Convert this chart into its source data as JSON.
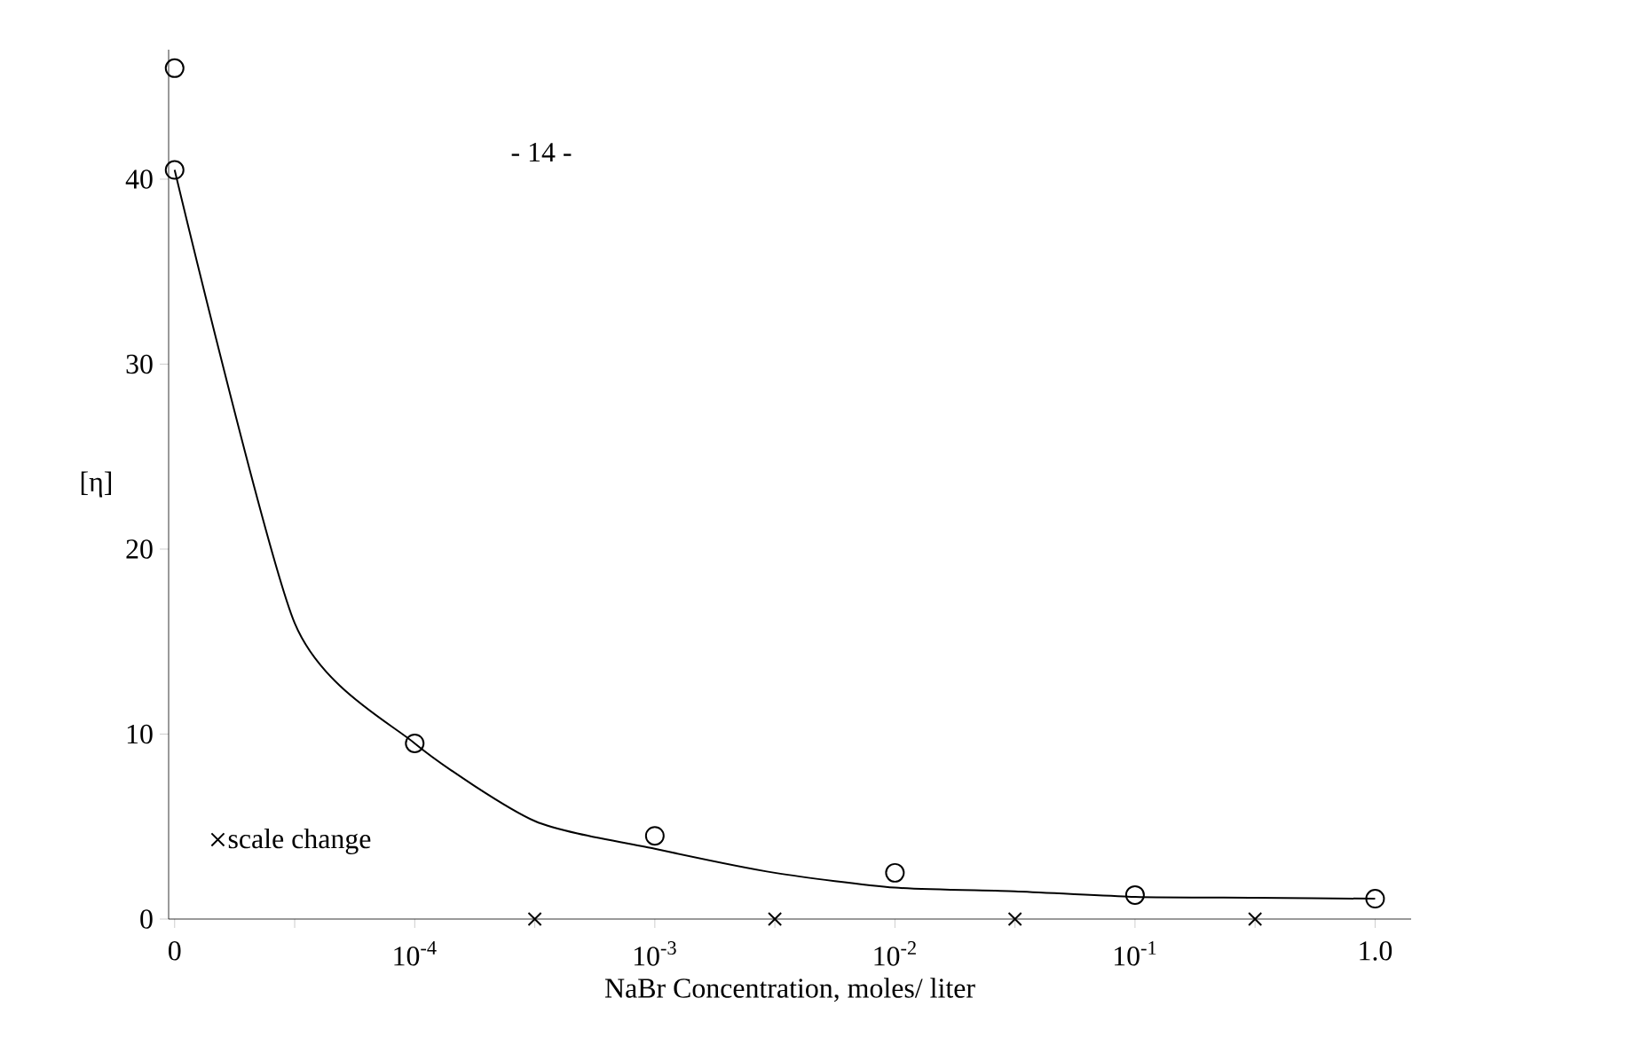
{
  "chart_data": {
    "type": "scatter",
    "xlabel": "NaBr Concentration, moles/ liter",
    "ylabel": "[η]",
    "annotations": [
      "- 14 -"
    ],
    "categories": [
      "0",
      null,
      "10$^{-4}$",
      null,
      "10$^{-3}$",
      null,
      "10$^{-2}$",
      null,
      "10$^{-1}$",
      null,
      "1.0"
    ],
    "ylim": [
      0,
      47
    ],
    "yticks": [
      0,
      10,
      20,
      30,
      40
    ],
    "grid": false,
    "legend": "bottom left",
    "series": [
      {
        "marker": "circle",
        "color": "#000000",
        "values": [
          40.5,
          null,
          9.5,
          null,
          4.5,
          null,
          2.5,
          null,
          1.3,
          null,
          1.1
        ]
      },
      {
        "marker": "circle",
        "color": "#000000",
        "values": [
          46,
          null,
          null,
          null,
          null,
          null,
          null,
          null,
          null,
          null,
          null
        ]
      },
      {
        "type": "line",
        "marker": "none",
        "line_style": "solid",
        "color": "#000000",
        "values": [
          40.5,
          16,
          9.5,
          5.3,
          3.8,
          2.5,
          1.7,
          1.5,
          1.2,
          1.15,
          1.1
        ]
      },
      {
        "name": "scale change",
        "marker": "cross",
        "color": "#000000",
        "values": [
          null,
          null,
          null,
          0,
          null,
          0,
          null,
          0,
          null,
          0,
          null
        ]
      }
    ]
  }
}
